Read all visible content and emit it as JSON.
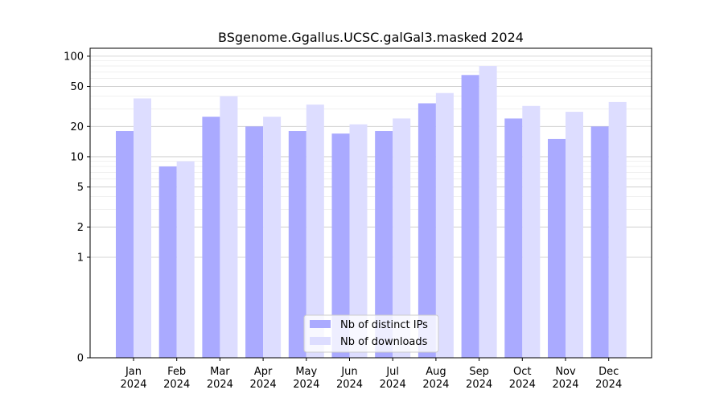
{
  "chart_data": {
    "type": "bar",
    "title": "BSgenome.Ggallus.UCSC.galGal3.masked 2024",
    "xlabel": "",
    "ylabel": "",
    "y_scale": "symlog",
    "ylim": [
      0,
      120
    ],
    "y_ticks": [
      0,
      1,
      2,
      5,
      10,
      20,
      50,
      100
    ],
    "grid": "horizontal",
    "legend_position": "lower-center",
    "categories": [
      {
        "month": "Jan",
        "year": "2024"
      },
      {
        "month": "Feb",
        "year": "2024"
      },
      {
        "month": "Mar",
        "year": "2024"
      },
      {
        "month": "Apr",
        "year": "2024"
      },
      {
        "month": "May",
        "year": "2024"
      },
      {
        "month": "Jun",
        "year": "2024"
      },
      {
        "month": "Jul",
        "year": "2024"
      },
      {
        "month": "Aug",
        "year": "2024"
      },
      {
        "month": "Sep",
        "year": "2024"
      },
      {
        "month": "Oct",
        "year": "2024"
      },
      {
        "month": "Nov",
        "year": "2024"
      },
      {
        "month": "Dec",
        "year": "2024"
      }
    ],
    "series": [
      {
        "name": "Nb of distinct IPs",
        "color": "#aaaaff",
        "values": [
          18,
          8,
          25,
          20,
          18,
          17,
          18,
          34,
          65,
          24,
          15,
          20
        ]
      },
      {
        "name": "Nb of downloads",
        "color": "#ddddff",
        "values": [
          38,
          9,
          40,
          25,
          33,
          21,
          24,
          43,
          80,
          32,
          28,
          35
        ]
      }
    ]
  }
}
